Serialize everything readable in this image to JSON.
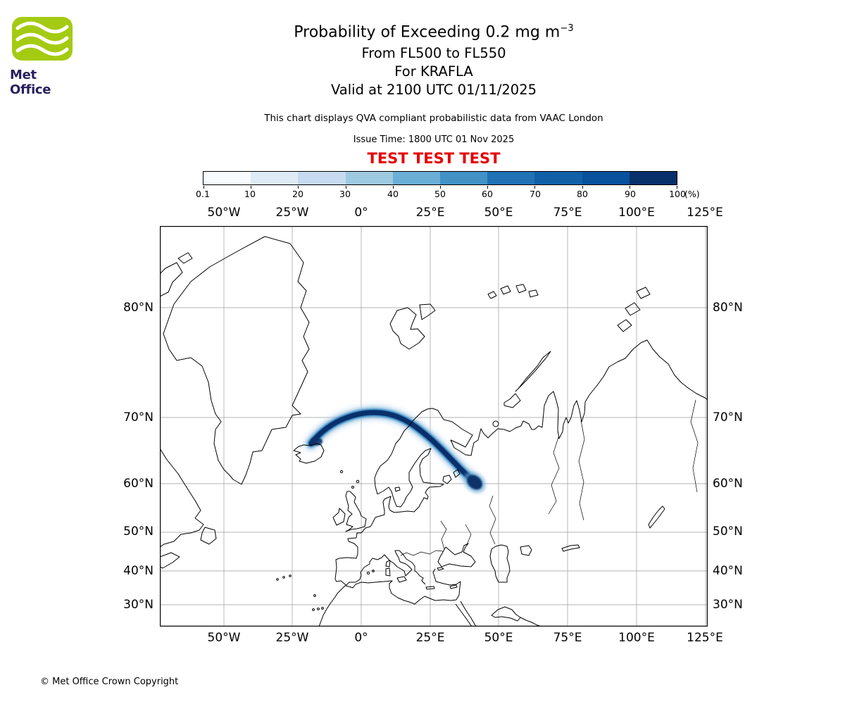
{
  "brand": {
    "logo_text": "Met Office",
    "logo_green": "#a4cb12",
    "logo_text_color": "#261f5e"
  },
  "header": {
    "title_prefix": "Probability of Exceeding 0.2 mg m",
    "title_superscript": "−3",
    "flight_levels": "From FL500 to FL550",
    "volcano": "For KRAFLA",
    "valid_time": "Valid at 2100 UTC 01/11/2025",
    "note": "This chart displays QVA compliant probabilistic data from VAAC London",
    "issue_time": "Issue Time: 1800 UTC 01 Nov 2025",
    "test_banner": "TEST TEST TEST",
    "test_banner_color": "#e60000"
  },
  "colorbar": {
    "tick_labels": [
      "0.1",
      "10",
      "20",
      "30",
      "40",
      "50",
      "60",
      "70",
      "80",
      "90",
      "100"
    ],
    "unit_label": "(%)",
    "colors": [
      "#f7fbff",
      "#deebf7",
      "#c6dbef",
      "#9ecae1",
      "#6baed6",
      "#4292c6",
      "#2171b5",
      "#1060a8",
      "#08519c",
      "#08306b"
    ]
  },
  "map": {
    "lon_labels": [
      "50°W",
      "25°W",
      "0°",
      "25°E",
      "50°E",
      "75°E",
      "100°E",
      "125°E"
    ],
    "lat_labels": [
      "80°N",
      "70°N",
      "60°N",
      "50°N",
      "40°N",
      "30°N"
    ]
  },
  "footer": {
    "copyright": "© Met Office Crown Copyright"
  },
  "chart_data": {
    "type": "map",
    "projection": "mercator",
    "map_extent_deg": {
      "lon_min": -73,
      "lon_max": 126,
      "lat_min": 23,
      "lat_max": 85
    },
    "graticule_lon_deg": [
      -50,
      -25,
      0,
      25,
      50,
      75,
      100,
      125
    ],
    "graticule_lat_deg": [
      80,
      70,
      60,
      50,
      40,
      30
    ],
    "probability_scale_percent": [
      0.1,
      10,
      20,
      30,
      40,
      50,
      60,
      70,
      80,
      90,
      100
    ],
    "plume": {
      "description": "High-probability volcanic ash plume extending east-northeast from Krafla (Iceland) across the Norwegian Sea and northern Scandinavia, then curving south-east into north-west Russia, ending in a dense blob near 60N 43E",
      "track_lon_lat": [
        [
          -17.9,
          66.7
        ],
        [
          -8.7,
          69.7
        ],
        [
          -2.0,
          70.6
        ],
        [
          5.6,
          70.8
        ],
        [
          13.8,
          70.0
        ],
        [
          22.3,
          68.5
        ],
        [
          31.2,
          65.2
        ],
        [
          36.9,
          62.3
        ],
        [
          42.5,
          59.6
        ]
      ],
      "core_probability_percent": 90,
      "edge_probability_percent": 10
    }
  }
}
